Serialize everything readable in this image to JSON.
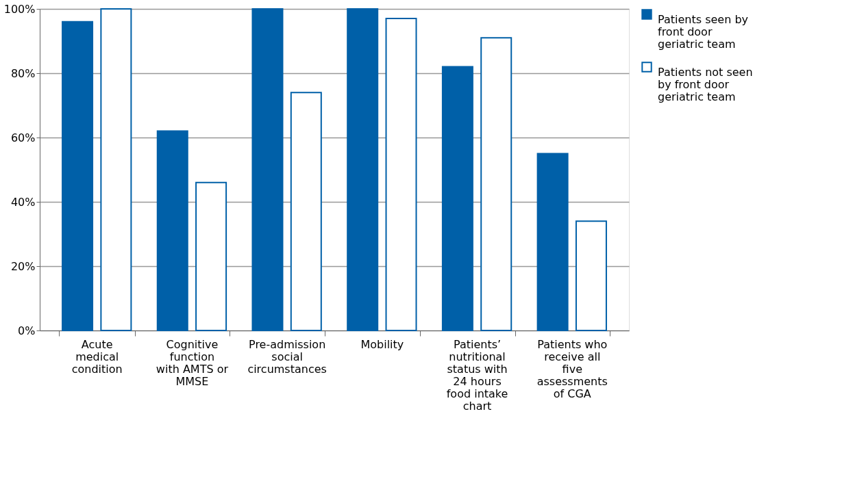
{
  "chart_data": {
    "type": "bar",
    "categories": [
      "Acute medical condition",
      "Cognitive function with AMTS or MMSE",
      "Pre-admission social circumstances",
      "Mobility",
      "Patients’ nutritional status with 24 hours food intake chart",
      "Patients who receive all five assessments of CGA"
    ],
    "series": [
      {
        "name": "Patients seen by front door geriatric team",
        "color": "#0060a8",
        "values": [
          96,
          62,
          100,
          100,
          82,
          55
        ]
      },
      {
        "name": "Patients not seen by front door geriatric team",
        "color": "#ffffff",
        "values": [
          100,
          46,
          74,
          97,
          91,
          34
        ]
      }
    ],
    "ylim": [
      0,
      100
    ],
    "yticks": [
      {
        "value": 0,
        "label": "0%"
      },
      {
        "value": 20,
        "label": "20%"
      },
      {
        "value": 40,
        "label": "40%"
      },
      {
        "value": 60,
        "label": "60%"
      },
      {
        "value": 80,
        "label": "80%"
      },
      {
        "value": 100,
        "label": "100%"
      }
    ],
    "grid": "y",
    "legend": "top right"
  }
}
